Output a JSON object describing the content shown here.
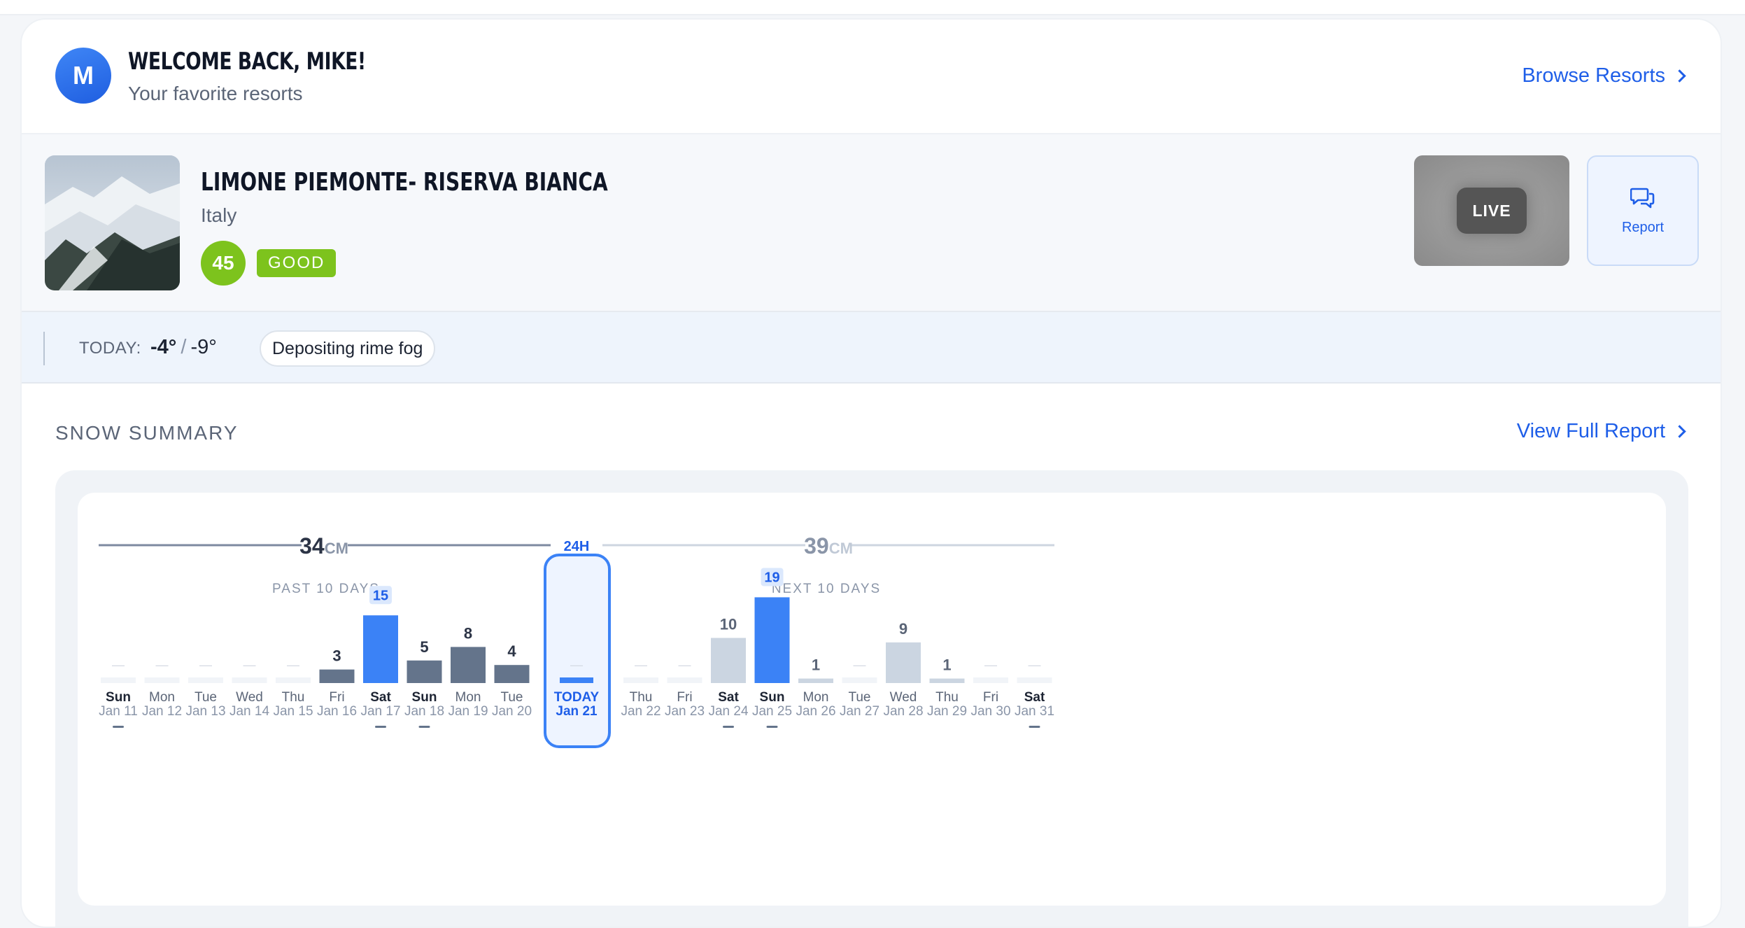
{
  "header": {
    "avatar_initial": "M",
    "welcome": "WELCOME BACK, MIKE!",
    "subtitle": "Your favorite resorts",
    "browse_label": "Browse Resorts"
  },
  "resort": {
    "name": "LIMONE PIEMONTE- RISERVA BIANCA",
    "country": "Italy",
    "score": "45",
    "rating": "GOOD",
    "live_label": "LIVE",
    "report_label": "Report"
  },
  "today": {
    "label": "TODAY:",
    "high": "-4°",
    "separator": "/",
    "low": "-9°",
    "condition": "Depositing rime fog"
  },
  "snow_summary": {
    "title": "SNOW SUMMARY",
    "view_full_report": "View Full Report",
    "past_total_value": "34",
    "past_total_unit": "CM",
    "center_label": "24H",
    "future_total_value": "39",
    "future_total_unit": "CM",
    "past_label": "PAST 10 DAYS",
    "future_label": "NEXT 10 DAYS",
    "today_day": "TODAY",
    "today_date": "Jan 21"
  },
  "colors": {
    "accent": "#3b82f6",
    "past_bar": "#64748b",
    "future_bar": "#cbd5e1",
    "good": "#7dc31d"
  },
  "chart_data": {
    "type": "bar",
    "categories": [
      "Jan 11",
      "Jan 12",
      "Jan 13",
      "Jan 14",
      "Jan 15",
      "Jan 16",
      "Jan 17",
      "Jan 18",
      "Jan 19",
      "Jan 20",
      "Jan 21",
      "Jan 22",
      "Jan 23",
      "Jan 24",
      "Jan 25",
      "Jan 26",
      "Jan 27",
      "Jan 28",
      "Jan 29",
      "Jan 30",
      "Jan 31"
    ],
    "days": [
      "Sun",
      "Mon",
      "Tue",
      "Wed",
      "Thu",
      "Fri",
      "Sat",
      "Sun",
      "Mon",
      "Tue",
      "TODAY",
      "Thu",
      "Fri",
      "Sat",
      "Sun",
      "Mon",
      "Tue",
      "Wed",
      "Thu",
      "Fri",
      "Sat"
    ],
    "values": [
      0,
      0,
      0,
      0,
      0,
      3,
      15,
      5,
      8,
      4,
      0,
      0,
      0,
      10,
      19,
      1,
      0,
      9,
      1,
      0,
      0
    ],
    "labels": [
      "—",
      "—",
      "—",
      "—",
      "—",
      "3",
      "15",
      "5",
      "8",
      "4",
      "—",
      "—",
      "—",
      "10",
      "19",
      "1",
      "—",
      "9",
      "1",
      "—",
      "—"
    ],
    "highlight": [
      false,
      false,
      false,
      false,
      false,
      false,
      true,
      false,
      false,
      false,
      false,
      false,
      false,
      false,
      true,
      false,
      false,
      false,
      false,
      false,
      false
    ],
    "bold_day": [
      true,
      false,
      false,
      false,
      false,
      false,
      true,
      true,
      false,
      false,
      true,
      false,
      false,
      true,
      true,
      false,
      false,
      false,
      false,
      false,
      true
    ],
    "weekend_marker": [
      true,
      false,
      false,
      false,
      false,
      false,
      true,
      true,
      false,
      false,
      false,
      false,
      false,
      true,
      true,
      false,
      false,
      false,
      false,
      false,
      true
    ],
    "unit": "cm"
  }
}
